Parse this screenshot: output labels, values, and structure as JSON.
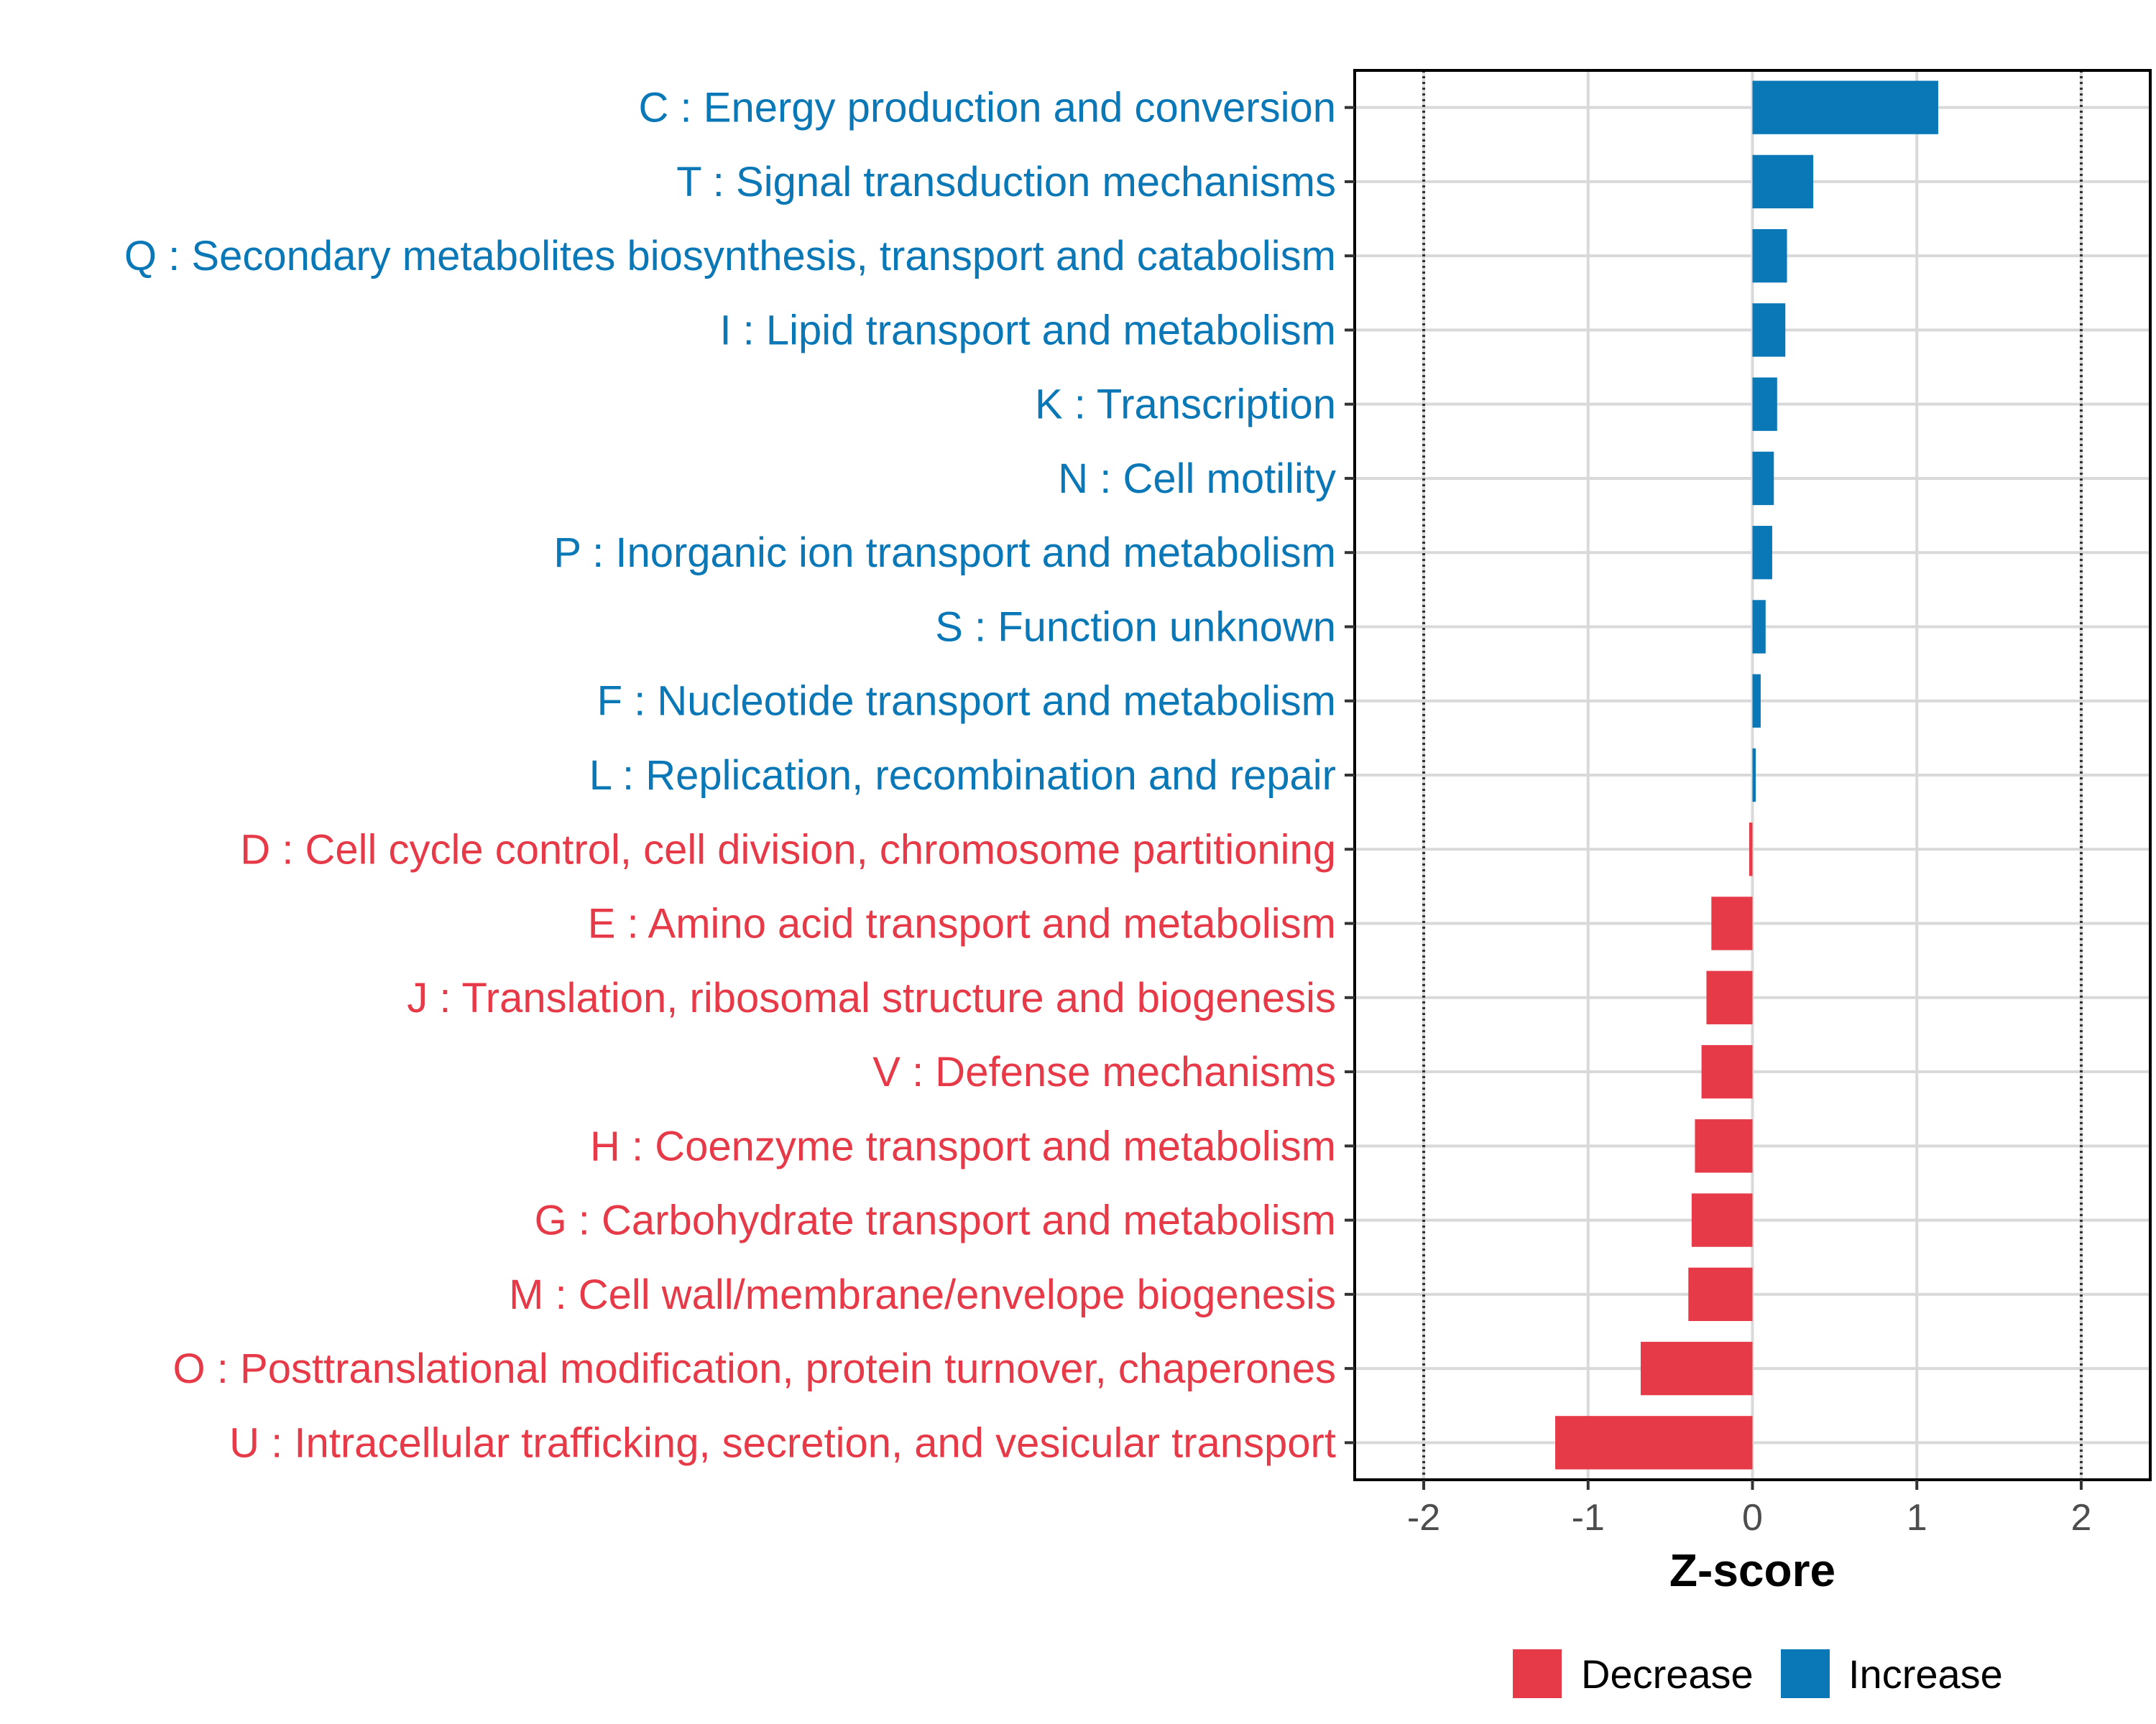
{
  "colors": {
    "increase": "#0a77b6",
    "decrease": "#e63a48",
    "grid": "#d9d9d9",
    "frame": "#000000"
  },
  "chart_data": {
    "type": "bar",
    "orientation": "horizontal",
    "xlabel": "Z-score",
    "xlim": [
      -2.42,
      2.42
    ],
    "xticks": [
      -2,
      -1,
      0,
      1,
      2
    ],
    "xtick_labels": [
      "-2",
      "-1",
      "0",
      "1",
      "2"
    ],
    "reference_lines": [
      -2,
      2
    ],
    "legend": {
      "placement": "bottom",
      "entries": [
        {
          "name": "Decrease",
          "color": "#e63a48"
        },
        {
          "name": "Increase",
          "color": "#0a77b6"
        }
      ]
    },
    "categories": [
      "C : Energy production and conversion",
      "T : Signal transduction mechanisms",
      "Q : Secondary metabolites biosynthesis, transport and catabolism",
      "I : Lipid transport and metabolism",
      "K : Transcription",
      "N : Cell motility",
      "P : Inorganic ion transport and metabolism",
      "S : Function unknown",
      "F : Nucleotide transport and metabolism",
      "L : Replication, recombination and repair",
      "D : Cell cycle control, cell division, chromosome partitioning",
      "E : Amino acid transport and metabolism",
      "J : Translation, ribosomal structure and biogenesis",
      "V : Defense mechanisms",
      "H : Coenzyme transport and metabolism",
      "G : Carbohydrate transport and metabolism",
      "M : Cell wall/membrane/envelope biogenesis",
      "O : Posttranslational modification, protein turnover, chaperones",
      "U : Intracellular trafficking, secretion, and vesicular transport"
    ],
    "values": [
      1.13,
      0.37,
      0.21,
      0.2,
      0.15,
      0.13,
      0.12,
      0.08,
      0.05,
      0.02,
      -0.02,
      -0.25,
      -0.28,
      -0.31,
      -0.35,
      -0.37,
      -0.39,
      -0.68,
      -1.2
    ],
    "direction": [
      "Increase",
      "Increase",
      "Increase",
      "Increase",
      "Increase",
      "Increase",
      "Increase",
      "Increase",
      "Increase",
      "Increase",
      "Decrease",
      "Decrease",
      "Decrease",
      "Decrease",
      "Decrease",
      "Decrease",
      "Decrease",
      "Decrease",
      "Decrease"
    ]
  }
}
